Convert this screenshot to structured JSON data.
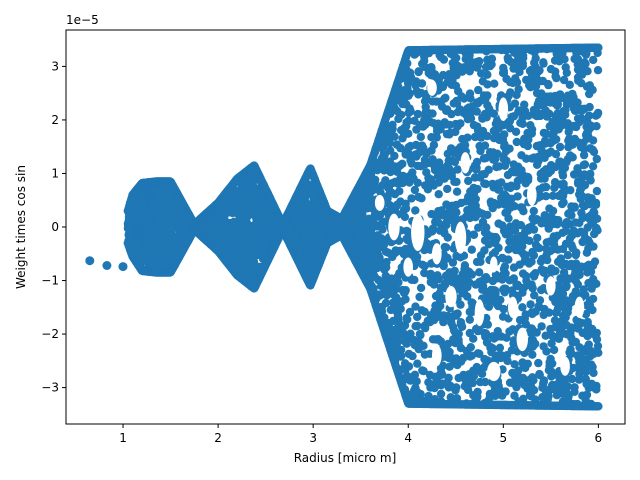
{
  "chart_data": {
    "type": "scatter",
    "title": "",
    "xlabel": "Radius [micro m]",
    "ylabel": "Weight times  cos  sin",
    "y_offset_label": "1e−5",
    "y_scale_factor": 1e-05,
    "xlim": [
      0.4,
      6.28
    ],
    "ylim": [
      -3.68,
      3.68
    ],
    "x_ticks": [
      1,
      2,
      3,
      4,
      5,
      6
    ],
    "y_ticks": [
      -3,
      -2,
      -1,
      0,
      1,
      2,
      3
    ],
    "grid": false,
    "legend": "none",
    "marker_color": "#1f77b4",
    "series": [
      {
        "points_isolated": [
          [
            0.65,
            -0.63
          ],
          [
            0.83,
            -0.72
          ],
          [
            1.0,
            -0.74
          ],
          [
            1.08,
            -0.2
          ],
          [
            1.15,
            -0.3
          ]
        ],
        "envelope_upper": [
          [
            1.05,
            0.3
          ],
          [
            1.1,
            0.6
          ],
          [
            1.2,
            0.82
          ],
          [
            1.35,
            0.85
          ],
          [
            1.5,
            0.85
          ],
          [
            1.75,
            0.05
          ],
          [
            2.0,
            0.45
          ],
          [
            2.2,
            0.9
          ],
          [
            2.38,
            1.15
          ],
          [
            2.68,
            0.05
          ],
          [
            2.97,
            1.1
          ],
          [
            3.15,
            0.3
          ],
          [
            3.3,
            0.15
          ],
          [
            3.6,
            1.15
          ],
          [
            4.0,
            3.3
          ],
          [
            6.0,
            3.35
          ]
        ],
        "envelope_lower": [
          [
            1.05,
            -0.3
          ],
          [
            1.1,
            -0.55
          ],
          [
            1.2,
            -0.82
          ],
          [
            1.35,
            -0.85
          ],
          [
            1.5,
            -0.85
          ],
          [
            1.75,
            -0.05
          ],
          [
            2.0,
            -0.45
          ],
          [
            2.2,
            -0.9
          ],
          [
            2.38,
            -1.15
          ],
          [
            2.68,
            -0.05
          ],
          [
            2.97,
            -1.1
          ],
          [
            3.15,
            -0.3
          ],
          [
            3.3,
            -0.15
          ],
          [
            3.6,
            -1.15
          ],
          [
            4.0,
            -3.3
          ],
          [
            6.0,
            -3.35
          ]
        ]
      }
    ]
  }
}
